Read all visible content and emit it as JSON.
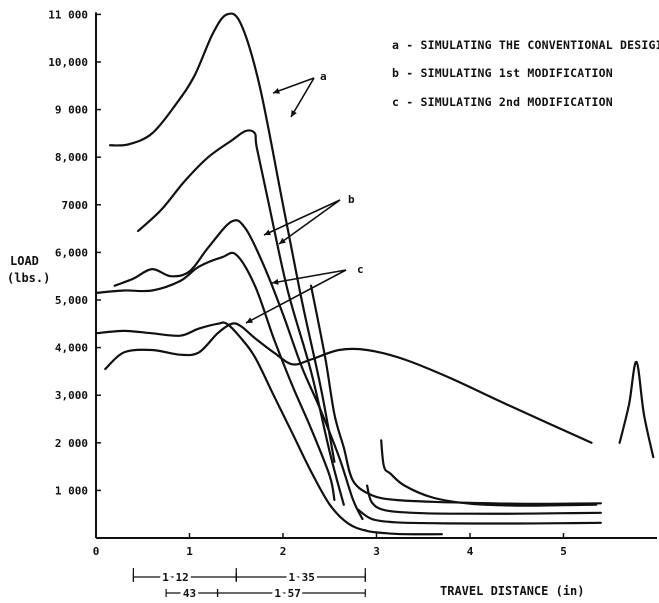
{
  "chart_data": {
    "type": "line",
    "xlabel": "TRAVEL DISTANCE (in)",
    "ylabel": "LOAD",
    "ylabel_unit": "(lbs.)",
    "xlim": [
      0,
      6
    ],
    "ylim": [
      0,
      11000
    ],
    "x_ticks": [
      "0",
      "1",
      "2",
      "3",
      "4",
      "5"
    ],
    "y_ticks": [
      "1 000",
      "2 000",
      "3,000",
      "4,000",
      "5,000",
      "6,000",
      "7000",
      "8,000",
      "9 000",
      "10,000",
      "11 000"
    ],
    "legend": [
      "a - SIMULATING THE CONVENTIONAL DESIGI",
      "b - SIMULATING 1st MODIFICATION",
      "c - SIMULATING 2nd MODIFICATION"
    ],
    "curve_labels": [
      "a",
      "b",
      "c"
    ],
    "dimension_labels": [
      "1 12",
      "1 35",
      "43",
      "1 57"
    ],
    "series": [
      {
        "group": "a",
        "x": [
          0.15,
          0.35,
          0.6,
          0.85,
          1.05,
          1.25,
          1.4,
          1.55,
          1.75,
          2.0,
          2.2,
          2.4,
          2.55
        ],
        "y": [
          8250,
          8270,
          8500,
          9100,
          9700,
          10600,
          11000,
          10800,
          9500,
          7000,
          5000,
          3200,
          1600
        ]
      },
      {
        "group": "a",
        "x": [
          0.45,
          0.7,
          0.95,
          1.2,
          1.45,
          1.6,
          1.7,
          1.72,
          1.85,
          2.05,
          2.3,
          2.5,
          2.65
        ],
        "y": [
          6450,
          6900,
          7500,
          8000,
          8350,
          8550,
          8500,
          8200,
          7000,
          5200,
          3500,
          1800,
          700
        ]
      },
      {
        "group": "b",
        "x": [
          0.2,
          0.4,
          0.6,
          0.8,
          1.0,
          1.2,
          1.45,
          1.6,
          1.8,
          2.0,
          2.2,
          2.4,
          2.6,
          2.75,
          2.85
        ],
        "y": [
          5300,
          5450,
          5650,
          5500,
          5600,
          6100,
          6650,
          6500,
          5700,
          4700,
          3600,
          2700,
          1700,
          800,
          400
        ]
      },
      {
        "group": "b",
        "x": [
          0.0,
          0.3,
          0.6,
          0.9,
          1.1,
          1.35,
          1.5,
          1.7,
          1.9,
          2.1,
          2.3,
          2.5,
          2.55
        ],
        "y": [
          5150,
          5200,
          5200,
          5400,
          5700,
          5900,
          5950,
          5300,
          4200,
          3200,
          2300,
          1300,
          800
        ]
      },
      {
        "group": "c",
        "x": [
          0.0,
          0.3,
          0.6,
          0.9,
          1.1,
          1.3,
          1.4,
          1.55,
          1.7,
          1.9,
          2.1,
          2.3,
          2.5,
          2.7,
          2.9,
          3.1,
          3.3,
          3.7
        ],
        "y": [
          4300,
          4350,
          4300,
          4250,
          4400,
          4500,
          4500,
          4200,
          3800,
          3000,
          2200,
          1400,
          700,
          300,
          150,
          100,
          80,
          80
        ]
      },
      {
        "group": "c",
        "x": [
          0.1,
          0.3,
          0.6,
          0.9,
          1.1,
          1.3,
          1.45,
          1.55,
          1.7,
          1.9,
          2.1,
          2.3,
          2.6,
          2.9,
          3.3,
          3.8,
          4.4,
          5.3
        ],
        "y": [
          3550,
          3900,
          3950,
          3850,
          3900,
          4300,
          4500,
          4450,
          4200,
          3900,
          3650,
          3750,
          3950,
          3950,
          3750,
          3350,
          2800,
          2000
        ]
      },
      {
        "group": "c",
        "x": [
          2.3,
          2.45,
          2.55,
          2.65,
          2.75,
          2.95,
          3.2,
          3.6,
          4.0,
          4.5,
          5.0,
          5.4
        ],
        "y": [
          5300,
          3800,
          2600,
          1900,
          1200,
          900,
          800,
          760,
          740,
          720,
          720,
          730
        ]
      },
      {
        "group": "tail",
        "x": [
          3.05,
          3.08,
          3.15,
          3.3,
          3.6,
          4.0,
          4.5,
          5.0,
          5.35
        ],
        "y": [
          2050,
          1500,
          1350,
          1100,
          850,
          720,
          680,
          690,
          700
        ]
      },
      {
        "group": "tail",
        "x": [
          2.9,
          2.95,
          3.1,
          3.5,
          4.0,
          4.5,
          5.0,
          5.4
        ],
        "y": [
          1100,
          750,
          580,
          520,
          510,
          510,
          520,
          530
        ]
      },
      {
        "group": "tail",
        "x": [
          2.8,
          2.95,
          3.2,
          3.6,
          4.0,
          4.5,
          5.0,
          5.4
        ],
        "y": [
          600,
          400,
          330,
          310,
          305,
          305,
          310,
          320
        ]
      },
      {
        "group": "spike",
        "x": [
          5.6,
          5.7,
          5.78,
          5.86,
          5.96
        ],
        "y": [
          2000,
          2800,
          3700,
          2600,
          1700
        ]
      }
    ]
  }
}
